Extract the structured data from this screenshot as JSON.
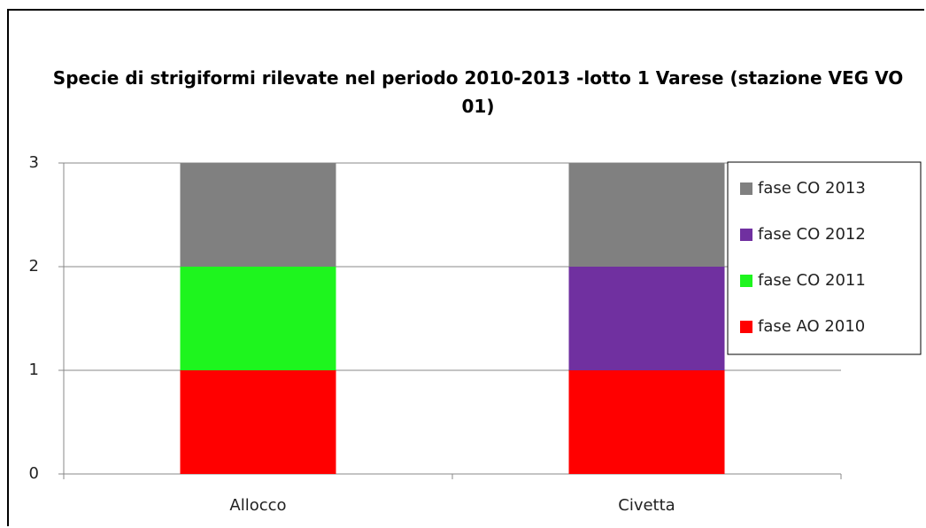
{
  "chart_data": {
    "type": "stacked_bar",
    "title": "Specie di strigiformi rilevate nel periodo 2010-2013 -lotto 1 Varese (stazione VEG VO 01)",
    "categories": [
      "Allocco",
      "Civetta"
    ],
    "series": [
      {
        "name": "fase AO 2010",
        "color": "#ff0000",
        "values": [
          1,
          1
        ]
      },
      {
        "name": "fase CO 2011",
        "color": "#1ef51e",
        "values": [
          1,
          0
        ]
      },
      {
        "name": "fase CO 2012",
        "color": "#7030a0",
        "values": [
          0,
          1
        ]
      },
      {
        "name": "fase CO 2013",
        "color": "#808080",
        "values": [
          1,
          1
        ]
      }
    ],
    "ylim": [
      0,
      3
    ],
    "yticks": [
      0,
      1,
      2,
      3
    ],
    "grid": true,
    "legend": "right"
  }
}
